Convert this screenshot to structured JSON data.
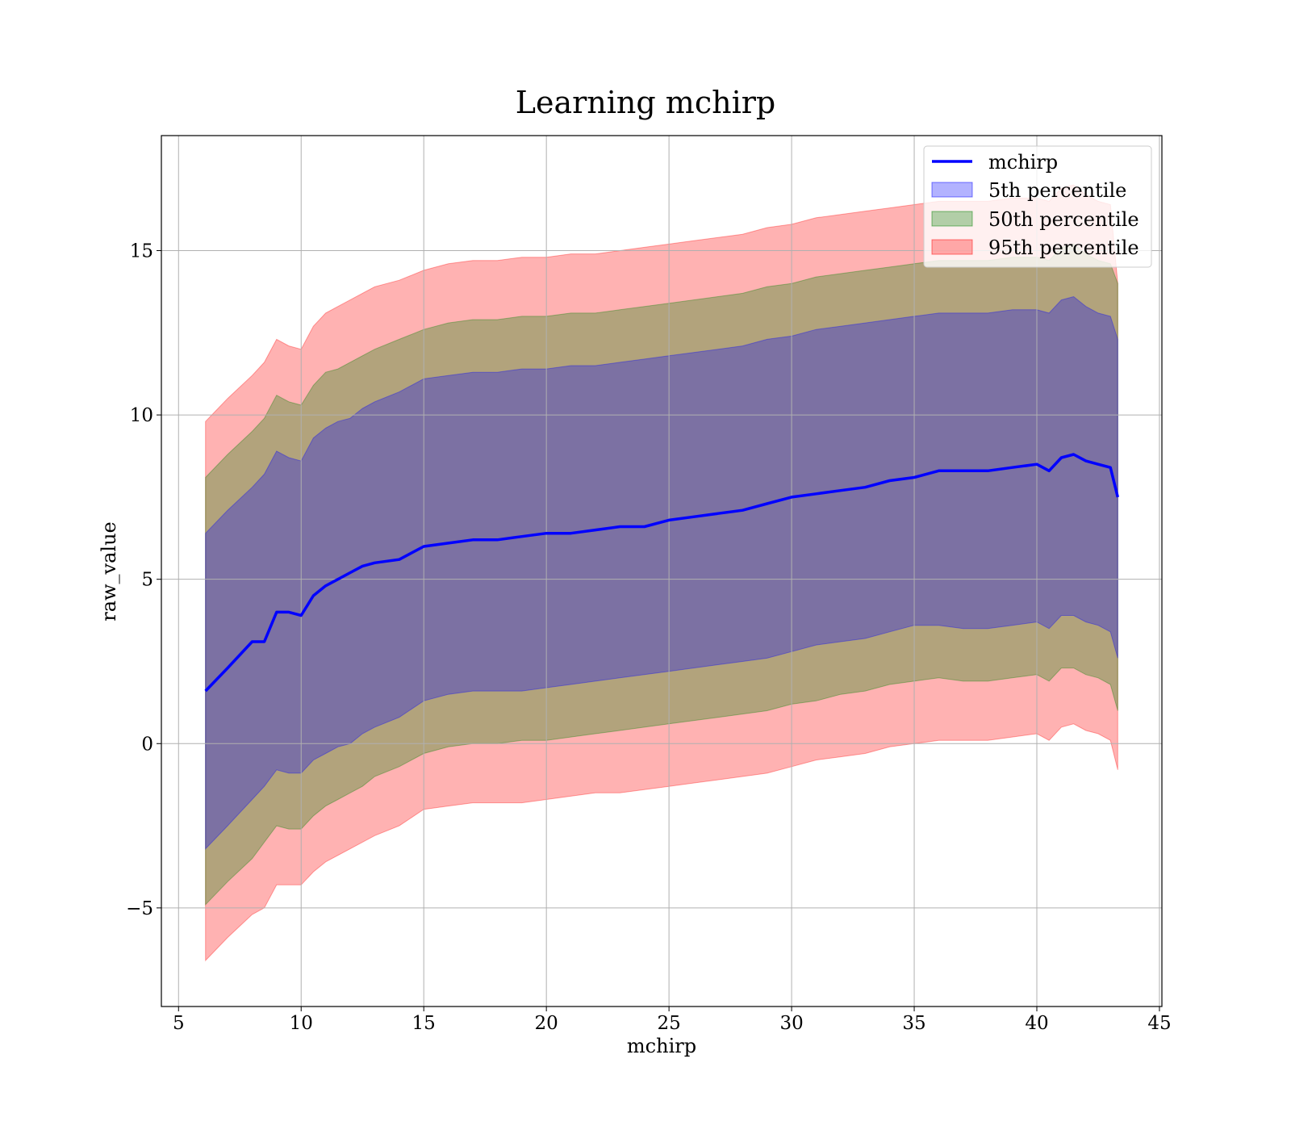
{
  "chart_data": {
    "type": "line",
    "title": "Learning mchirp",
    "xlabel": "mchirp",
    "ylabel": "raw_value",
    "xlim": [
      4.3,
      45.1
    ],
    "ylim": [
      -8,
      18.5
    ],
    "xticks": [
      5,
      10,
      15,
      20,
      25,
      30,
      35,
      40,
      45
    ],
    "yticks": [
      -5,
      0,
      5,
      10,
      15
    ],
    "xtick_labels": [
      "5",
      "10",
      "15",
      "20",
      "25",
      "30",
      "35",
      "40",
      "45"
    ],
    "ytick_labels": [
      "−5",
      "0",
      "5",
      "10",
      "15"
    ],
    "grid": true,
    "legend_position": "top-right",
    "x": [
      6.1,
      7.0,
      8.0,
      8.5,
      9.0,
      9.5,
      10.0,
      10.5,
      11.0,
      11.5,
      12.0,
      12.5,
      13.0,
      14.0,
      15.0,
      16.0,
      17.0,
      18.0,
      19.0,
      20.0,
      21.0,
      22.0,
      23.0,
      24.0,
      25.0,
      26.0,
      27.0,
      28.0,
      29.0,
      30.0,
      31.0,
      32.0,
      33.0,
      34.0,
      35.0,
      36.0,
      37.0,
      38.0,
      39.0,
      40.0,
      40.5,
      41.0,
      41.5,
      42.0,
      42.5,
      43.0,
      43.3
    ],
    "series": [
      {
        "name": "mchirp",
        "kind": "line",
        "color": "#0000ff",
        "values": [
          1.6,
          2.3,
          3.1,
          3.1,
          4.0,
          4.0,
          3.9,
          4.5,
          4.8,
          5.0,
          5.2,
          5.4,
          5.5,
          5.6,
          6.0,
          6.1,
          6.2,
          6.2,
          6.3,
          6.4,
          6.4,
          6.5,
          6.6,
          6.6,
          6.8,
          6.9,
          7.0,
          7.1,
          7.3,
          7.5,
          7.6,
          7.7,
          7.8,
          8.0,
          8.1,
          8.3,
          8.3,
          8.3,
          8.4,
          8.5,
          8.3,
          8.7,
          8.8,
          8.6,
          8.5,
          8.4,
          7.5
        ]
      },
      {
        "name": "5th percentile",
        "kind": "band",
        "color": "#0000ff",
        "lower": [
          -3.2,
          -2.5,
          -1.7,
          -1.3,
          -0.8,
          -0.9,
          -0.9,
          -0.5,
          -0.3,
          -0.1,
          0.0,
          0.3,
          0.5,
          0.8,
          1.3,
          1.5,
          1.6,
          1.6,
          1.6,
          1.7,
          1.8,
          1.9,
          2.0,
          2.1,
          2.2,
          2.3,
          2.4,
          2.5,
          2.6,
          2.8,
          3.0,
          3.1,
          3.2,
          3.4,
          3.6,
          3.6,
          3.5,
          3.5,
          3.6,
          3.7,
          3.5,
          3.9,
          3.9,
          3.7,
          3.6,
          3.4,
          2.6
        ],
        "upper": [
          6.4,
          7.1,
          7.8,
          8.2,
          8.9,
          8.7,
          8.6,
          9.3,
          9.6,
          9.8,
          9.9,
          10.2,
          10.4,
          10.7,
          11.1,
          11.2,
          11.3,
          11.3,
          11.4,
          11.4,
          11.5,
          11.5,
          11.6,
          11.7,
          11.8,
          11.9,
          12.0,
          12.1,
          12.3,
          12.4,
          12.6,
          12.7,
          12.8,
          12.9,
          13.0,
          13.1,
          13.1,
          13.1,
          13.2,
          13.2,
          13.1,
          13.5,
          13.6,
          13.3,
          13.1,
          13.0,
          12.3
        ]
      },
      {
        "name": "50th percentile",
        "kind": "band",
        "color": "#008000",
        "lower": [
          -4.9,
          -4.2,
          -3.5,
          -3.0,
          -2.5,
          -2.6,
          -2.6,
          -2.2,
          -1.9,
          -1.7,
          -1.5,
          -1.3,
          -1.0,
          -0.7,
          -0.3,
          -0.1,
          0.0,
          0.0,
          0.1,
          0.1,
          0.2,
          0.3,
          0.4,
          0.5,
          0.6,
          0.7,
          0.8,
          0.9,
          1.0,
          1.2,
          1.3,
          1.5,
          1.6,
          1.8,
          1.9,
          2.0,
          1.9,
          1.9,
          2.0,
          2.1,
          1.9,
          2.3,
          2.3,
          2.1,
          2.0,
          1.8,
          1.0
        ],
        "upper": [
          8.1,
          8.8,
          9.5,
          9.9,
          10.6,
          10.4,
          10.3,
          10.9,
          11.3,
          11.4,
          11.6,
          11.8,
          12.0,
          12.3,
          12.6,
          12.8,
          12.9,
          12.9,
          13.0,
          13.0,
          13.1,
          13.1,
          13.2,
          13.3,
          13.4,
          13.5,
          13.6,
          13.7,
          13.9,
          14.0,
          14.2,
          14.3,
          14.4,
          14.5,
          14.6,
          14.7,
          14.7,
          14.7,
          14.8,
          14.8,
          14.7,
          15.1,
          15.2,
          14.9,
          14.7,
          14.6,
          14.0
        ]
      },
      {
        "name": "95th percentile",
        "kind": "band",
        "color": "#ff0000",
        "lower": [
          -6.6,
          -5.9,
          -5.2,
          -5.0,
          -4.3,
          -4.3,
          -4.3,
          -3.9,
          -3.6,
          -3.4,
          -3.2,
          -3.0,
          -2.8,
          -2.5,
          -2.0,
          -1.9,
          -1.8,
          -1.8,
          -1.8,
          -1.7,
          -1.6,
          -1.5,
          -1.5,
          -1.4,
          -1.3,
          -1.2,
          -1.1,
          -1.0,
          -0.9,
          -0.7,
          -0.5,
          -0.4,
          -0.3,
          -0.1,
          0.0,
          0.1,
          0.1,
          0.1,
          0.2,
          0.3,
          0.1,
          0.5,
          0.6,
          0.4,
          0.3,
          0.1,
          -0.8
        ],
        "upper": [
          9.8,
          10.5,
          11.2,
          11.6,
          12.3,
          12.1,
          12.0,
          12.7,
          13.1,
          13.3,
          13.5,
          13.7,
          13.9,
          14.1,
          14.4,
          14.6,
          14.7,
          14.7,
          14.8,
          14.8,
          14.9,
          14.9,
          15.0,
          15.1,
          15.2,
          15.3,
          15.4,
          15.5,
          15.7,
          15.8,
          16.0,
          16.1,
          16.2,
          16.3,
          16.4,
          16.5,
          16.5,
          16.5,
          16.6,
          16.6,
          16.5,
          16.9,
          17.0,
          16.7,
          16.5,
          16.4,
          14.0
        ]
      }
    ],
    "legend": [
      "mchirp",
      "5th percentile",
      "50th percentile",
      "95th percentile"
    ]
  }
}
